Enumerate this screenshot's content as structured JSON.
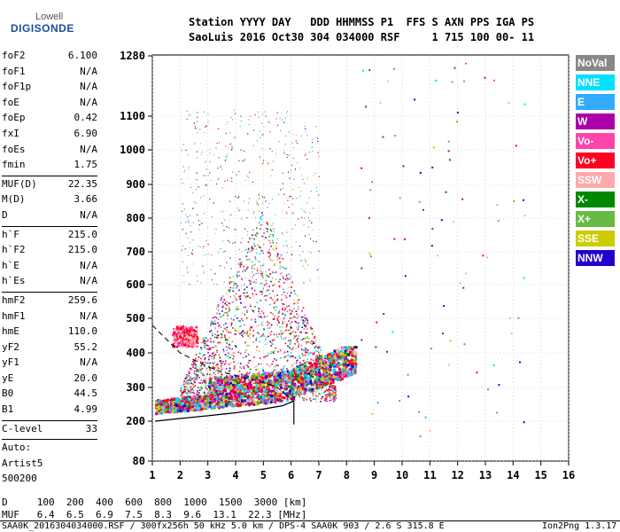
{
  "logo": {
    "top": "Lowell",
    "main": "DIGISONDE"
  },
  "header": {
    "line1": "Station YYYY DAY   DDD HHMMSS P1  FFS S AXN PPS IGA PS",
    "line2": "SaoLuis 2016 Oct30 304 034000 RSF     1 715 100 00- 11"
  },
  "params": {
    "g1": [
      {
        "name": "foF2",
        "value": "6.100"
      },
      {
        "name": "foF1",
        "value": "N/A"
      },
      {
        "name": "foF1p",
        "value": "N/A"
      },
      {
        "name": "foE",
        "value": "N/A"
      },
      {
        "name": "foEp",
        "value": "0.42"
      },
      {
        "name": "fxI",
        "value": "6.90"
      },
      {
        "name": "foEs",
        "value": "N/A"
      },
      {
        "name": "fmin",
        "value": "1.75"
      }
    ],
    "g2": [
      {
        "name": "MUF(D)",
        "value": "22.35"
      },
      {
        "name": "M(D)",
        "value": "3.66"
      },
      {
        "name": "D",
        "value": "N/A"
      }
    ],
    "g3": [
      {
        "name": "h`F",
        "value": "215.0"
      },
      {
        "name": "h`F2",
        "value": "215.0"
      },
      {
        "name": "h`E",
        "value": "N/A"
      },
      {
        "name": "h`Es",
        "value": "N/A"
      }
    ],
    "g4": [
      {
        "name": "hmF2",
        "value": "259.6"
      },
      {
        "name": "hmF1",
        "value": "N/A"
      },
      {
        "name": "hmE",
        "value": "110.0"
      },
      {
        "name": "yF2",
        "value": "55.2"
      },
      {
        "name": "yF1",
        "value": "N/A"
      },
      {
        "name": "yE",
        "value": "20.0"
      },
      {
        "name": "B0",
        "value": "44.5"
      },
      {
        "name": "B1",
        "value": "4.99"
      }
    ],
    "g5": [
      {
        "name": "C-level",
        "value": "33"
      }
    ],
    "auto": [
      "Auto:",
      "Artist5",
      "500200"
    ]
  },
  "legend": [
    {
      "label": "NoVal",
      "color": "#888888"
    },
    {
      "label": "NNE",
      "color": "#00e0ff"
    },
    {
      "label": "E",
      "color": "#33aaff"
    },
    {
      "label": "W",
      "color": "#aa00aa"
    },
    {
      "label": "Vo-",
      "color": "#ff44aa"
    },
    {
      "label": "Vo+",
      "color": "#ff0022"
    },
    {
      "label": "SSW",
      "color": "#ffaaaa"
    },
    {
      "label": "X-",
      "color": "#008800"
    },
    {
      "label": "X+",
      "color": "#66bb44"
    },
    {
      "label": "SSE",
      "color": "#cccc00"
    },
    {
      "label": "NNW",
      "color": "#2200cc"
    }
  ],
  "muf_table": {
    "d_line": "D     100  200  400  600  800  1000  1500  3000 [km]",
    "muf_line": "MUF   6.4  6.5  6.9  7.5  8.3  9.6  13.1  22.3 [MHz]"
  },
  "footer": {
    "left": "SAA0K_2016304034000.RSF / 300fx256h 50 kHz 5.0 km / DPS-4 SAA0K 903 / 2.6 S 315.8 E",
    "right": "Ion2Png 1.3.17"
  },
  "chart_data": {
    "type": "scatter",
    "xlabel": "",
    "ylabel": "",
    "xlim": [
      1,
      16
    ],
    "ylim": [
      80,
      1280
    ],
    "x_ticks": [
      1,
      2,
      3,
      4,
      5,
      6,
      7,
      8,
      9,
      10,
      11,
      12,
      13,
      14,
      15,
      16
    ],
    "y_ticks": [
      80,
      200,
      300,
      400,
      500,
      600,
      700,
      800,
      900,
      1000,
      1100,
      1280
    ],
    "traces": [
      {
        "name": "O-mode trace (low)",
        "points": [
          [
            1.1,
            225
          ],
          [
            2,
            232
          ],
          [
            3,
            238
          ],
          [
            4,
            245
          ],
          [
            5,
            255
          ],
          [
            5.8,
            265
          ],
          [
            6.1,
            300
          ],
          [
            6.5,
            330
          ],
          [
            7.5,
            340
          ],
          [
            8.2,
            320
          ]
        ]
      },
      {
        "name": "F-layer echoes",
        "points": [
          [
            2.0,
            450
          ],
          [
            3.0,
            500
          ],
          [
            4.0,
            620
          ],
          [
            5.0,
            700
          ],
          [
            6.0,
            560
          ],
          [
            7.0,
            520
          ]
        ]
      }
    ],
    "profile_line": [
      [
        1.1,
        200
      ],
      [
        2,
        208
      ],
      [
        3,
        216
      ],
      [
        4,
        225
      ],
      [
        5,
        236
      ],
      [
        5.7,
        246
      ],
      [
        6.1,
        260
      ]
    ],
    "profile_dashed": [
      [
        1.0,
        480
      ],
      [
        1.5,
        440
      ],
      [
        2,
        400
      ],
      [
        2.5,
        380
      ],
      [
        3,
        360
      ],
      [
        3.5,
        345
      ],
      [
        4,
        335
      ],
      [
        4.5,
        325
      ],
      [
        5,
        315
      ],
      [
        5.5,
        300
      ],
      [
        6.1,
        260
      ]
    ]
  }
}
